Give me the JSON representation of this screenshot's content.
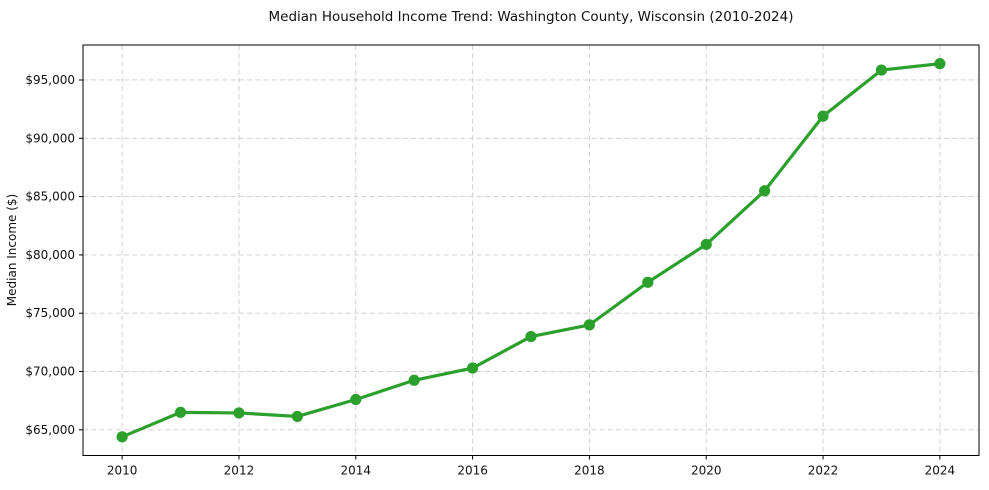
{
  "page": {
    "title": "Median Household Income Trend: Washington County, Wisconsin (2010-2024)"
  },
  "chart_data": {
    "type": "line",
    "title": "Median Household Income Trend: Washington County, Wisconsin (2010-2024)",
    "xlabel": "",
    "ylabel": "Median Income ($)",
    "x": [
      2010,
      2011,
      2012,
      2013,
      2014,
      2015,
      2016,
      2017,
      2018,
      2019,
      2020,
      2021,
      2022,
      2023,
      2024
    ],
    "values": [
      64400,
      66500,
      66450,
      66150,
      67600,
      69250,
      70300,
      73000,
      74000,
      77650,
      80900,
      85500,
      91900,
      95850,
      96400
    ],
    "xlim": [
      2009.33,
      2024.67
    ],
    "ylim": [
      62800,
      98000
    ],
    "x_ticks": [
      2010,
      2012,
      2014,
      2016,
      2018,
      2020,
      2022,
      2024
    ],
    "x_tick_labels": [
      "2010",
      "2012",
      "2014",
      "2016",
      "2018",
      "2020",
      "2022",
      "2024"
    ],
    "y_ticks": [
      65000,
      70000,
      75000,
      80000,
      85000,
      90000,
      95000
    ],
    "y_tick_labels": [
      "$65,000",
      "$70,000",
      "$75,000",
      "$80,000",
      "$85,000",
      "$90,000",
      "$95,000"
    ],
    "grid": true,
    "legend": false,
    "marker": "circle",
    "line_color": "#2ca02c",
    "marker_color": "#2ca02c",
    "grid_color": "#cccccc",
    "axis_color": "#000000",
    "background_color": "#ffffff"
  }
}
